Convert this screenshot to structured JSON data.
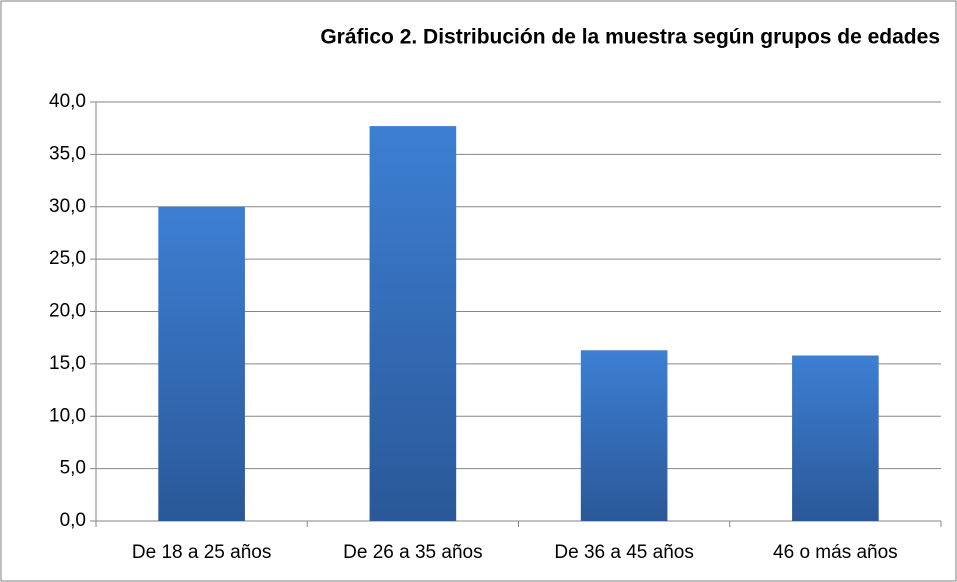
{
  "chart_data": {
    "type": "bar",
    "title": "Gráfico 2. Distribución de la muestra según grupos de edades",
    "categories": [
      "De 18 a 25 años",
      "De 26 a 35 años",
      "De 36 a 45 años",
      "46 o más años"
    ],
    "values": [
      30.0,
      37.7,
      16.3,
      15.8
    ],
    "color": "#3d7fd3",
    "ylim": [
      0,
      40
    ],
    "yticks": [
      {
        "value": 0,
        "label": "0,0"
      },
      {
        "value": 5,
        "label": "5,0"
      },
      {
        "value": 10,
        "label": "10,0"
      },
      {
        "value": 15,
        "label": "15,0"
      },
      {
        "value": 20,
        "label": "20,0"
      },
      {
        "value": 25,
        "label": "25,0"
      },
      {
        "value": 30,
        "label": "30,0"
      },
      {
        "value": 35,
        "label": "35,0"
      },
      {
        "value": 40,
        "label": "40,0"
      }
    ],
    "grid": true
  }
}
